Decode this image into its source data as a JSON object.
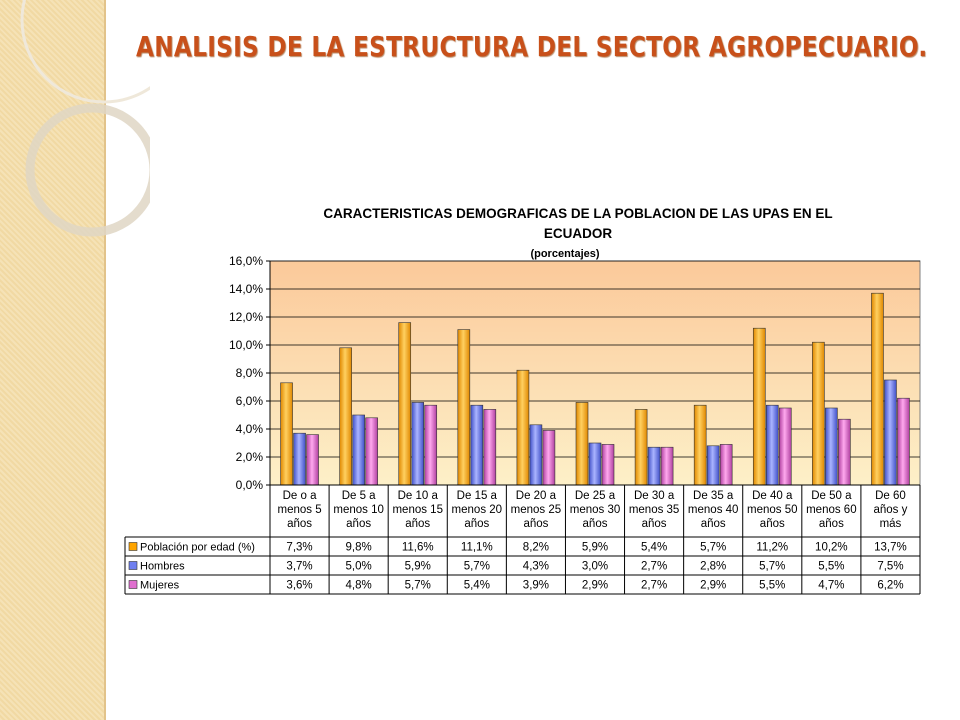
{
  "slide": {
    "title": "ANALISIS DE LA ESTRUCTURA DEL SECTOR AGROPECUARIO."
  },
  "colors": {
    "poblacion": "#ffa500",
    "hombres": "#6f7ff0",
    "mujeres": "#e06fcf",
    "title": "#c8501a",
    "plot_bg": "#fbd9a6"
  },
  "chart_data": {
    "type": "bar",
    "title": "CARACTERISTICAS DEMOGRAFICAS DE LA POBLACION DE LAS UPAS EN EL ECUADOR",
    "subtitle": "(porcentajes)",
    "ylim": [
      0,
      16
    ],
    "yticks": [
      "0,0%",
      "2,0%",
      "4,0%",
      "6,0%",
      "8,0%",
      "10,0%",
      "12,0%",
      "14,0%",
      "16,0%"
    ],
    "grid": true,
    "legend": "table-below",
    "categories": [
      "De o a menos 5 años",
      "De 5 a menos 10 años",
      "De 10 a menos 15 años",
      "De 15 a menos 20 años",
      "De 20 a menos 25 años",
      "De 25 a menos 30 años",
      "De 30 a menos 35 años",
      "De 35 a menos 40 años",
      "De 40 a menos 50 años",
      "De 50 a menos 60 años",
      "De 60 años y más"
    ],
    "category_lines": [
      [
        "De o a",
        "menos 5",
        "años"
      ],
      [
        "De 5 a",
        "menos 10",
        "años"
      ],
      [
        "De 10 a",
        "menos 15",
        "años"
      ],
      [
        "De 15 a",
        "menos 20",
        "años"
      ],
      [
        "De 20 a",
        "menos 25",
        "años"
      ],
      [
        "De 25 a",
        "menos 30",
        "años"
      ],
      [
        "De 30 a",
        "menos 35",
        "años"
      ],
      [
        "De 35 a",
        "menos 40",
        "años"
      ],
      [
        "De 40 a",
        "menos 50",
        "años"
      ],
      [
        "De 50 a",
        "menos 60",
        "años"
      ],
      [
        "De 60",
        "años y",
        "más"
      ]
    ],
    "series": [
      {
        "name": "Población por edad (%)",
        "color": "#ffa500",
        "values": [
          7.3,
          9.8,
          11.6,
          11.1,
          8.2,
          5.9,
          5.4,
          5.7,
          11.2,
          10.2,
          13.7
        ],
        "labels": [
          "7,3%",
          "9,8%",
          "11,6%",
          "11,1%",
          "8,2%",
          "5,9%",
          "5,4%",
          "5,7%",
          "11,2%",
          "10,2%",
          "13,7%"
        ]
      },
      {
        "name": "Hombres",
        "color": "#6f7ff0",
        "values": [
          3.7,
          5.0,
          5.9,
          5.7,
          4.3,
          3.0,
          2.7,
          2.8,
          5.7,
          5.5,
          7.5
        ],
        "labels": [
          "3,7%",
          "5,0%",
          "5,9%",
          "5,7%",
          "4,3%",
          "3,0%",
          "2,7%",
          "2,8%",
          "5,7%",
          "5,5%",
          "7,5%"
        ]
      },
      {
        "name": "Mujeres",
        "color": "#e06fcf",
        "values": [
          3.6,
          4.8,
          5.7,
          5.4,
          3.9,
          2.9,
          2.7,
          2.9,
          5.5,
          4.7,
          6.2
        ],
        "labels": [
          "3,6%",
          "4,8%",
          "5,7%",
          "5,4%",
          "3,9%",
          "2,9%",
          "2,7%",
          "2,9%",
          "5,5%",
          "4,7%",
          "6,2%"
        ]
      }
    ]
  }
}
